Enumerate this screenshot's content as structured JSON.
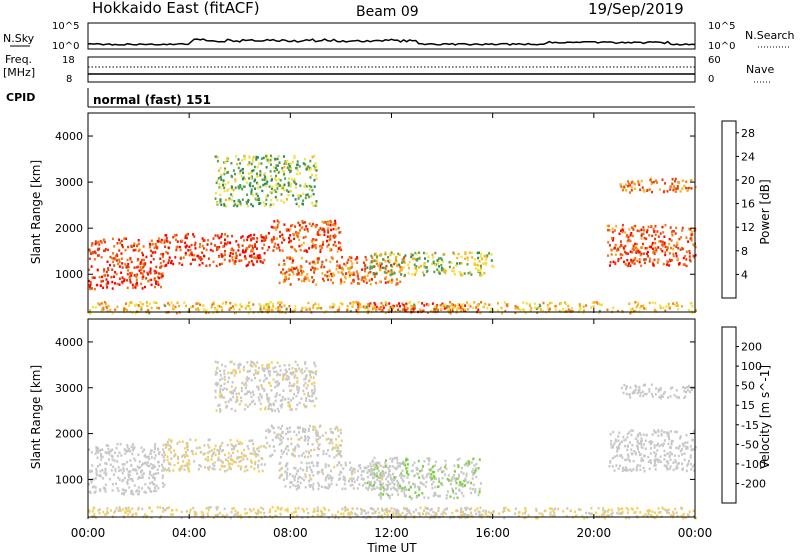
{
  "header": {
    "title": "Hokkaido East (fitACF)",
    "beam": "Beam 09",
    "date": "19/Sep/2019"
  },
  "top_panels": {
    "nsky_label": "N.Sky",
    "nsky_ticks": [
      "10^5",
      "10^0"
    ],
    "nsearch_label": "N.Search",
    "nsearch_ticks": [
      "10^5",
      "10^0"
    ],
    "freq_label": "Freq.",
    "freq_unit": "[MHz]",
    "freq_ticks": [
      "18",
      "8"
    ],
    "nave_label": "Nave",
    "nave_ticks": [
      "60",
      "0"
    ],
    "cpid_label": "CPID",
    "cpid_value": "normal (fast) 151"
  },
  "colors": {
    "power_scale": [
      "#0000ff",
      "#1e3ca0",
      "#2e8b57",
      "#5aa050",
      "#f0e040",
      "#f5b21e",
      "#f07814",
      "#e83c0a",
      "#ff0000"
    ],
    "velocity_scale": [
      "#ff0000",
      "#ff5a00",
      "#ff8c00",
      "#f5a623",
      "#f0d060",
      "#c8c8c8",
      "#c8c8c8",
      "#7cd03a",
      "#3fa02f",
      "#2e6f9e",
      "#1a1aff"
    ]
  },
  "chart_data": [
    {
      "type": "heatmap",
      "name": "power",
      "ylabel": "Slant Range [km]",
      "xlabel": "Time UT",
      "x_ticks": [
        "00:00",
        "04:00",
        "08:00",
        "12:00",
        "16:00",
        "20:00",
        "00:00"
      ],
      "y_ticks": [
        "1000",
        "2000",
        "3000",
        "4000"
      ],
      "ylim": [
        180,
        4500
      ],
      "xlim_hours": [
        0,
        24
      ],
      "colorbar_label": "Power [dB]",
      "colorbar_ticks": [
        "4",
        "8",
        "12",
        "16",
        "20",
        "24",
        "28"
      ],
      "colorbar_range": [
        0,
        30
      ],
      "echo_regions": [
        {
          "t0": 0.0,
          "t1": 3.0,
          "r0": 700,
          "r1": 1800,
          "v": 25
        },
        {
          "t0": 3.0,
          "t1": 7.0,
          "r0": 1200,
          "r1": 1900,
          "v": 26
        },
        {
          "t0": 7.0,
          "t1": 10.0,
          "r0": 1500,
          "r1": 2200,
          "v": 24
        },
        {
          "t0": 7.5,
          "t1": 12.5,
          "r0": 800,
          "r1": 1400,
          "v": 22
        },
        {
          "t0": 10.5,
          "t1": 15.5,
          "r0": 200,
          "r1": 400,
          "v": 27
        },
        {
          "t0": 11.0,
          "t1": 16.0,
          "r0": 1000,
          "r1": 1500,
          "v": 14
        },
        {
          "t0": 5.0,
          "t1": 9.0,
          "r0": 2500,
          "r1": 3600,
          "v": 12
        },
        {
          "t0": 20.5,
          "t1": 24.0,
          "r0": 1200,
          "r1": 2100,
          "v": 24
        },
        {
          "t0": 21.0,
          "t1": 24.0,
          "r0": 2800,
          "r1": 3100,
          "v": 22
        },
        {
          "t0": 0.0,
          "t1": 24.0,
          "r0": 180,
          "r1": 420,
          "v": 18
        }
      ]
    },
    {
      "type": "heatmap",
      "name": "velocity",
      "ylabel": "Slant Range [km]",
      "xlabel": "Time UT",
      "x_ticks": [
        "00:00",
        "04:00",
        "08:00",
        "12:00",
        "16:00",
        "20:00",
        "00:00"
      ],
      "y_ticks": [
        "1000",
        "2000",
        "3000",
        "4000"
      ],
      "ylim": [
        180,
        4500
      ],
      "xlim_hours": [
        0,
        24
      ],
      "colorbar_label": "Velocity [m s^-1]",
      "colorbar_ticks": [
        "200",
        "100",
        "50",
        "15",
        "-15",
        "-50",
        "-100",
        "-200"
      ],
      "colorbar_range": [
        -250,
        250
      ],
      "echo_regions": [
        {
          "t0": 0.0,
          "t1": 3.0,
          "r0": 700,
          "r1": 1800,
          "v": 0
        },
        {
          "t0": 3.0,
          "t1": 7.0,
          "r0": 1200,
          "r1": 1900,
          "v": -20
        },
        {
          "t0": 7.0,
          "t1": 10.0,
          "r0": 1500,
          "r1": 2200,
          "v": -10
        },
        {
          "t0": 7.5,
          "t1": 12.5,
          "r0": 800,
          "r1": 1400,
          "v": -5
        },
        {
          "t0": 11.0,
          "t1": 15.5,
          "r0": 600,
          "r1": 1500,
          "v": 60
        },
        {
          "t0": 10.5,
          "t1": 16.0,
          "r0": 200,
          "r1": 400,
          "v": 30
        },
        {
          "t0": 5.0,
          "t1": 9.0,
          "r0": 2500,
          "r1": 3600,
          "v": -10
        },
        {
          "t0": 20.5,
          "t1": 24.0,
          "r0": 1200,
          "r1": 2100,
          "v": 0
        },
        {
          "t0": 21.0,
          "t1": 24.0,
          "r0": 2800,
          "r1": 3100,
          "v": 0
        },
        {
          "t0": 0.0,
          "t1": 24.0,
          "r0": 180,
          "r1": 420,
          "v": -30
        }
      ]
    }
  ]
}
